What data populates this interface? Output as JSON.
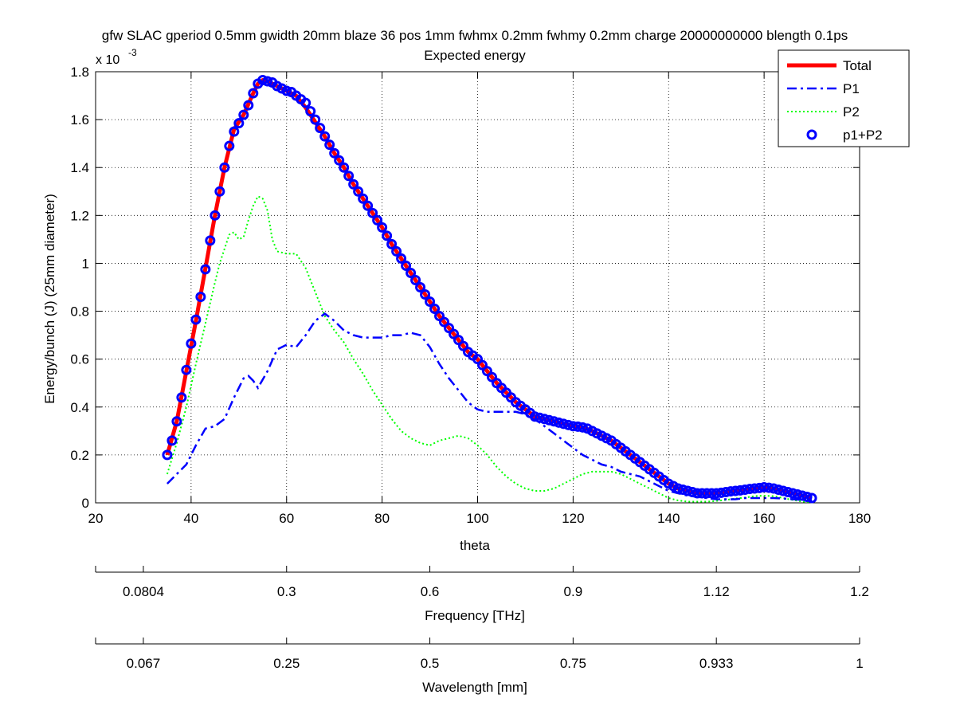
{
  "title_line1": "gfw SLAC gperiod 0.5mm gwidth 20mm blaze 36 pos 1mm fwhmx 0.2mm fwhmy 0.2mm charge 20000000000 blength 0.1ps",
  "title_line2": "Expected energy",
  "colors": {
    "total": "#ff0000",
    "p1": "#0000ff",
    "p2": "#00ff00",
    "p1p2": "#0000ff",
    "grid": "#000000"
  },
  "chart_data": {
    "type": "line",
    "title": "gfw SLAC gperiod 0.5mm gwidth 20mm blaze 36 pos 1mm fwhmx 0.2mm fwhmy 0.2mm charge 20000000000 blength 0.1ps",
    "subtitle": "Expected energy",
    "xlabel": "theta",
    "ylabel": "Energy/bunch (J)  (25mm diameter)",
    "y_exponent_label": "x 10",
    "y_exponent_sup": "-3",
    "xlim": [
      20,
      180
    ],
    "ylim": [
      0,
      1.8
    ],
    "y_scale_note": "values in units of 1e-3 J",
    "grid": true,
    "legend_position": "top-right",
    "xticks": [
      20,
      40,
      60,
      80,
      100,
      120,
      140,
      160,
      180
    ],
    "yticks": [
      0,
      0.2,
      0.4,
      0.6,
      0.8,
      1,
      1.2,
      1.4,
      1.6,
      1.8
    ],
    "ytick_labels": [
      "0",
      "0.2",
      "0.4",
      "0.6",
      "0.8",
      "1",
      "1.2",
      "1.4",
      "1.6",
      "1.8"
    ],
    "series": [
      {
        "name": "Total",
        "style": "solid",
        "x": [
          35,
          37,
          39,
          41,
          43,
          45,
          47,
          49,
          51,
          53,
          54,
          55,
          56,
          58,
          60,
          62,
          64,
          66,
          68,
          70,
          72,
          74,
          76,
          78,
          80,
          82,
          84,
          86,
          88,
          90,
          92,
          94,
          96,
          98,
          100,
          102,
          104,
          106,
          108,
          110,
          112,
          114,
          116,
          118,
          120,
          122,
          124,
          126,
          128,
          130,
          132,
          134,
          136,
          138,
          140,
          142,
          144,
          146,
          148,
          150,
          152,
          154,
          156,
          158,
          160,
          162,
          164,
          166,
          168,
          170
        ],
        "y": [
          0.2,
          0.34,
          0.55,
          0.76,
          0.98,
          1.2,
          1.4,
          1.56,
          1.62,
          1.71,
          1.75,
          1.765,
          1.76,
          1.74,
          1.72,
          1.7,
          1.65,
          1.59,
          1.53,
          1.46,
          1.4,
          1.33,
          1.27,
          1.21,
          1.15,
          1.08,
          1.02,
          0.96,
          0.9,
          0.84,
          0.78,
          0.73,
          0.68,
          0.63,
          0.6,
          0.55,
          0.5,
          0.46,
          0.42,
          0.39,
          0.36,
          0.35,
          0.34,
          0.33,
          0.32,
          0.315,
          0.3,
          0.28,
          0.26,
          0.23,
          0.2,
          0.17,
          0.14,
          0.11,
          0.08,
          0.06,
          0.05,
          0.04,
          0.04,
          0.04,
          0.045,
          0.05,
          0.055,
          0.06,
          0.065,
          0.06,
          0.05,
          0.04,
          0.03,
          0.02
        ]
      },
      {
        "name": "P1",
        "style": "dashdot",
        "x": [
          35,
          37,
          39,
          41,
          43,
          45,
          47,
          49,
          51,
          52,
          53,
          54,
          56,
          58,
          60,
          62,
          64,
          66,
          68,
          70,
          72,
          74,
          76,
          78,
          80,
          82,
          84,
          86,
          88,
          90,
          92,
          94,
          96,
          98,
          100,
          102,
          104,
          106,
          108,
          110,
          112,
          114,
          116,
          118,
          120,
          122,
          124,
          126,
          128,
          130,
          132,
          134,
          136,
          138,
          140,
          142,
          144,
          146,
          148,
          150,
          152,
          154,
          156,
          158,
          160,
          162,
          164,
          166,
          168,
          170
        ],
        "y": [
          0.08,
          0.12,
          0.16,
          0.24,
          0.31,
          0.32,
          0.35,
          0.44,
          0.52,
          0.53,
          0.51,
          0.48,
          0.55,
          0.64,
          0.66,
          0.65,
          0.7,
          0.76,
          0.79,
          0.76,
          0.72,
          0.7,
          0.69,
          0.69,
          0.69,
          0.7,
          0.7,
          0.71,
          0.7,
          0.65,
          0.58,
          0.52,
          0.47,
          0.42,
          0.39,
          0.38,
          0.38,
          0.38,
          0.38,
          0.37,
          0.35,
          0.32,
          0.29,
          0.26,
          0.23,
          0.2,
          0.18,
          0.16,
          0.15,
          0.13,
          0.12,
          0.11,
          0.09,
          0.07,
          0.05,
          0.04,
          0.03,
          0.025,
          0.02,
          0.015,
          0.015,
          0.015,
          0.02,
          0.02,
          0.02,
          0.02,
          0.018,
          0.015,
          0.012,
          0.01
        ]
      },
      {
        "name": "P2",
        "style": "dotted",
        "x": [
          35,
          37,
          39,
          41,
          43,
          45,
          46,
          47,
          48,
          49,
          50,
          51,
          52,
          53,
          54,
          55,
          56,
          57,
          58,
          60,
          62,
          64,
          66,
          68,
          70,
          72,
          74,
          76,
          78,
          80,
          82,
          84,
          86,
          88,
          90,
          92,
          94,
          96,
          98,
          100,
          102,
          104,
          106,
          108,
          110,
          112,
          114,
          116,
          118,
          120,
          122,
          124,
          126,
          128,
          130,
          132,
          134,
          136,
          138,
          140,
          142,
          144,
          146,
          148,
          150,
          152,
          154,
          156,
          158,
          160,
          162,
          164,
          166,
          168,
          170
        ],
        "y": [
          0.12,
          0.25,
          0.4,
          0.58,
          0.75,
          0.92,
          1.0,
          1.06,
          1.12,
          1.13,
          1.1,
          1.11,
          1.18,
          1.24,
          1.28,
          1.27,
          1.22,
          1.1,
          1.05,
          1.04,
          1.04,
          0.98,
          0.88,
          0.78,
          0.72,
          0.67,
          0.6,
          0.54,
          0.47,
          0.41,
          0.35,
          0.3,
          0.27,
          0.25,
          0.24,
          0.26,
          0.27,
          0.28,
          0.27,
          0.24,
          0.2,
          0.15,
          0.11,
          0.08,
          0.06,
          0.05,
          0.05,
          0.06,
          0.08,
          0.1,
          0.12,
          0.13,
          0.13,
          0.13,
          0.12,
          0.1,
          0.08,
          0.06,
          0.04,
          0.02,
          0.01,
          0.005,
          0.005,
          0.005,
          0.008,
          0.012,
          0.018,
          0.022,
          0.028,
          0.03,
          0.028,
          0.02,
          0.012,
          0.005,
          0.003
        ]
      },
      {
        "name": "p1+P2",
        "style": "circles",
        "x": [
          35,
          36,
          37,
          38,
          39,
          40,
          41,
          42,
          43,
          44,
          45,
          46,
          47,
          48,
          49,
          50,
          51,
          52,
          53,
          54,
          55,
          56,
          57,
          58,
          59,
          60,
          61,
          62,
          63,
          64,
          65,
          66,
          67,
          68,
          69,
          70,
          71,
          72,
          73,
          74,
          75,
          76,
          77,
          78,
          79,
          80,
          81,
          82,
          83,
          84,
          85,
          86,
          87,
          88,
          89,
          90,
          91,
          92,
          93,
          94,
          95,
          96,
          97,
          98,
          99,
          100,
          101,
          102,
          103,
          104,
          105,
          106,
          107,
          108,
          109,
          110,
          111,
          112,
          113,
          114,
          115,
          116,
          117,
          118,
          119,
          120,
          121,
          122,
          123,
          124,
          125,
          126,
          127,
          128,
          129,
          130,
          131,
          132,
          133,
          134,
          135,
          136,
          137,
          138,
          139,
          140,
          141,
          142,
          143,
          144,
          145,
          146,
          147,
          148,
          149,
          150,
          151,
          152,
          153,
          154,
          155,
          156,
          157,
          158,
          159,
          160,
          161,
          162,
          163,
          164,
          165,
          166,
          167,
          168,
          169,
          170
        ],
        "y": [
          0.2,
          0.26,
          0.34,
          0.44,
          0.555,
          0.665,
          0.765,
          0.86,
          0.975,
          1.095,
          1.2,
          1.3,
          1.4,
          1.49,
          1.55,
          1.585,
          1.62,
          1.66,
          1.71,
          1.75,
          1.765,
          1.76,
          1.755,
          1.74,
          1.73,
          1.72,
          1.715,
          1.7,
          1.685,
          1.67,
          1.635,
          1.6,
          1.565,
          1.53,
          1.495,
          1.46,
          1.43,
          1.4,
          1.365,
          1.33,
          1.3,
          1.27,
          1.24,
          1.21,
          1.18,
          1.15,
          1.115,
          1.08,
          1.05,
          1.02,
          0.99,
          0.96,
          0.93,
          0.9,
          0.87,
          0.84,
          0.81,
          0.78,
          0.755,
          0.73,
          0.705,
          0.68,
          0.655,
          0.63,
          0.615,
          0.6,
          0.575,
          0.55,
          0.525,
          0.5,
          0.48,
          0.46,
          0.44,
          0.42,
          0.405,
          0.39,
          0.375,
          0.36,
          0.355,
          0.35,
          0.345,
          0.34,
          0.335,
          0.33,
          0.325,
          0.32,
          0.318,
          0.315,
          0.31,
          0.3,
          0.29,
          0.28,
          0.27,
          0.26,
          0.245,
          0.23,
          0.215,
          0.2,
          0.185,
          0.17,
          0.155,
          0.14,
          0.125,
          0.11,
          0.095,
          0.08,
          0.07,
          0.06,
          0.055,
          0.05,
          0.045,
          0.04,
          0.04,
          0.04,
          0.04,
          0.04,
          0.042,
          0.045,
          0.048,
          0.05,
          0.052,
          0.055,
          0.058,
          0.06,
          0.062,
          0.065,
          0.063,
          0.06,
          0.055,
          0.05,
          0.045,
          0.04,
          0.035,
          0.03,
          0.025,
          0.02
        ]
      }
    ],
    "secondary_axes": [
      {
        "label": "Frequency [THz]",
        "tick_labels": [
          "0.0804",
          "0.3",
          "0.6",
          "0.9",
          "1.12",
          "1.2"
        ],
        "tick_thetas": [
          30,
          60,
          90,
          120,
          150,
          180
        ]
      },
      {
        "label": "Wavelength [mm]",
        "tick_labels": [
          "0.067",
          "0.25",
          "0.5",
          "0.75",
          "0.933",
          "1"
        ],
        "tick_thetas": [
          30,
          60,
          90,
          120,
          150,
          180
        ]
      }
    ]
  }
}
